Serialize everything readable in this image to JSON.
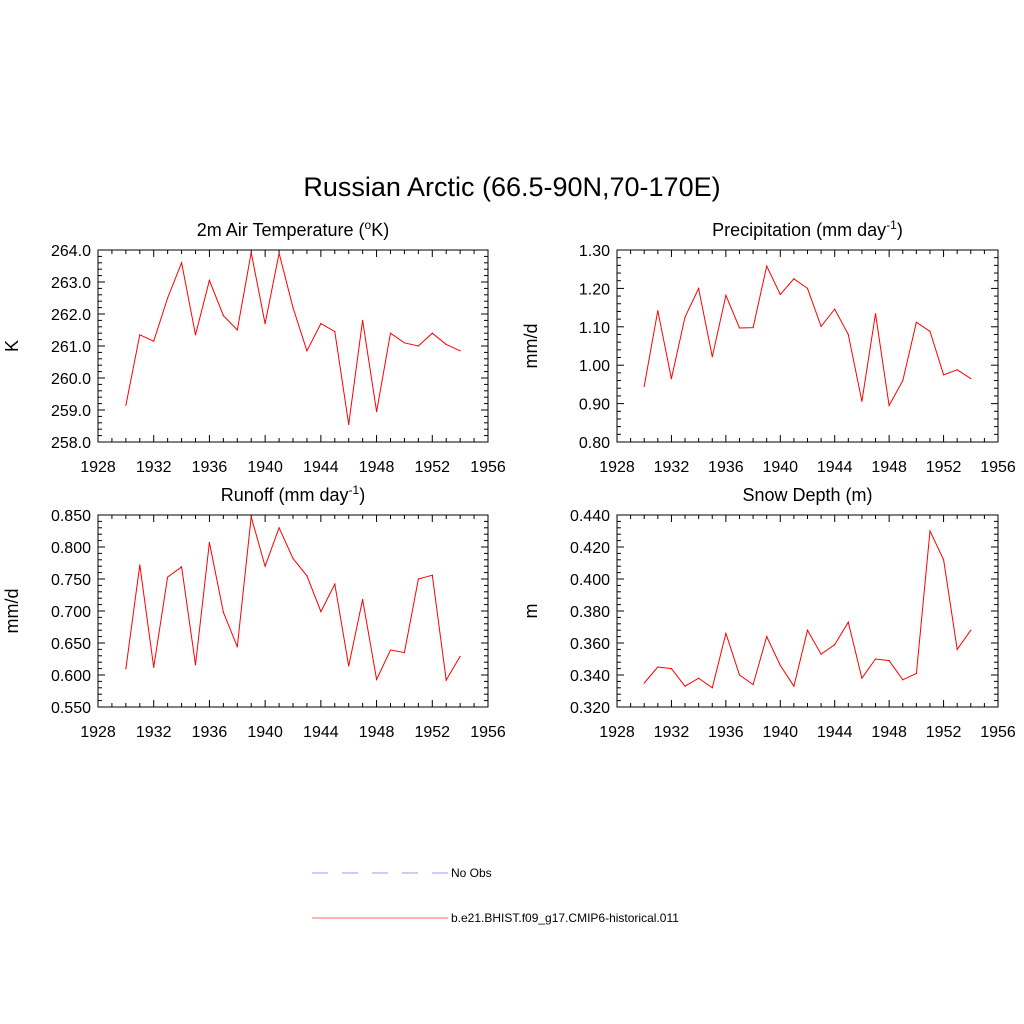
{
  "title": "Russian Arctic (66.5-90N,70-170E)",
  "legend": [
    {
      "label": "No Obs",
      "color": "#9999ff",
      "dash": true
    },
    {
      "label": "b.e21.BHIST.f09_g17.CMIP6-historical.011",
      "color": "#ff6666",
      "dash": false
    }
  ],
  "chart_data": [
    {
      "type": "line",
      "title": "2m Air Temperature (",
      "title_sup": "o",
      "title_after": "K)",
      "xlabel": "",
      "ylabel": "K",
      "xlim": [
        1928,
        1956
      ],
      "ylim": [
        258.0,
        264.0
      ],
      "xticks": [
        1928,
        1932,
        1936,
        1940,
        1944,
        1948,
        1952,
        1956
      ],
      "yticks": [
        "258.0",
        "259.0",
        "260.0",
        "261.0",
        "262.0",
        "263.0",
        "264.0"
      ],
      "series": [
        {
          "x": [
            1930,
            1931,
            1932,
            1933,
            1934,
            1935,
            1936,
            1937,
            1938,
            1939,
            1940,
            1941,
            1942,
            1943,
            1944,
            1945,
            1946,
            1947,
            1948,
            1949,
            1950,
            1951,
            1952,
            1953,
            1954
          ],
          "y": [
            259.15,
            261.35,
            261.15,
            262.5,
            263.6,
            261.35,
            263.05,
            261.95,
            261.5,
            263.92,
            261.7,
            263.9,
            262.2,
            260.85,
            261.7,
            261.45,
            258.55,
            261.8,
            258.95,
            261.4,
            261.1,
            261.0,
            261.4,
            261.05,
            260.85
          ]
        }
      ]
    },
    {
      "type": "line",
      "title": "Precipitation (mm day",
      "title_sup": "-1",
      "title_after": ")",
      "xlabel": "",
      "ylabel": "mm/d",
      "xlim": [
        1928,
        1956
      ],
      "ylim": [
        0.8,
        1.3
      ],
      "xticks": [
        1928,
        1932,
        1936,
        1940,
        1944,
        1948,
        1952,
        1956
      ],
      "yticks": [
        "0.80",
        "0.90",
        "1.00",
        "1.10",
        "1.20",
        "1.30"
      ],
      "series": [
        {
          "x": [
            1930,
            1931,
            1932,
            1933,
            1934,
            1935,
            1936,
            1937,
            1938,
            1939,
            1940,
            1941,
            1942,
            1943,
            1944,
            1945,
            1946,
            1947,
            1948,
            1949,
            1950,
            1951,
            1952,
            1953,
            1954
          ],
          "y": [
            0.945,
            1.142,
            0.965,
            1.125,
            1.2,
            1.022,
            1.182,
            1.097,
            1.098,
            1.258,
            1.184,
            1.225,
            1.2,
            1.101,
            1.146,
            1.08,
            0.906,
            1.134,
            0.895,
            0.96,
            1.112,
            1.088,
            0.975,
            0.988,
            0.965
          ]
        }
      ]
    },
    {
      "type": "line",
      "title": "Runoff (mm day",
      "title_sup": "-1",
      "title_after": ")",
      "xlabel": "",
      "ylabel": "mm/d",
      "xlim": [
        1928,
        1956
      ],
      "ylim": [
        0.55,
        0.85
      ],
      "xticks": [
        1928,
        1932,
        1936,
        1940,
        1944,
        1948,
        1952,
        1956
      ],
      "yticks": [
        "0.550",
        "0.600",
        "0.650",
        "0.700",
        "0.750",
        "0.800",
        "0.850"
      ],
      "series": [
        {
          "x": [
            1930,
            1931,
            1932,
            1933,
            1934,
            1935,
            1936,
            1937,
            1938,
            1939,
            1940,
            1941,
            1942,
            1943,
            1944,
            1945,
            1946,
            1947,
            1948,
            1949,
            1950,
            1951,
            1952,
            1953,
            1954
          ],
          "y": [
            0.61,
            0.772,
            0.612,
            0.753,
            0.769,
            0.616,
            0.807,
            0.698,
            0.644,
            0.847,
            0.77,
            0.83,
            0.782,
            0.755,
            0.699,
            0.742,
            0.614,
            0.718,
            0.593,
            0.639,
            0.635,
            0.75,
            0.756,
            0.592,
            0.629
          ]
        }
      ]
    },
    {
      "type": "line",
      "title": "Snow Depth (m)",
      "title_sup": "",
      "title_after": "",
      "xlabel": "",
      "ylabel": "m",
      "xlim": [
        1928,
        1956
      ],
      "ylim": [
        0.32,
        0.44
      ],
      "xticks": [
        1928,
        1932,
        1936,
        1940,
        1944,
        1948,
        1952,
        1956
      ],
      "yticks": [
        "0.320",
        "0.340",
        "0.360",
        "0.380",
        "0.400",
        "0.420",
        "0.440"
      ],
      "series": [
        {
          "x": [
            1930,
            1931,
            1932,
            1933,
            1934,
            1935,
            1936,
            1937,
            1938,
            1939,
            1940,
            1941,
            1942,
            1943,
            1944,
            1945,
            1946,
            1947,
            1948,
            1949,
            1950,
            1951,
            1952,
            1953,
            1954
          ],
          "y": [
            0.335,
            0.345,
            0.344,
            0.333,
            0.338,
            0.332,
            0.366,
            0.34,
            0.334,
            0.364,
            0.346,
            0.333,
            0.368,
            0.353,
            0.359,
            0.373,
            0.338,
            0.35,
            0.349,
            0.337,
            0.341,
            0.43,
            0.412,
            0.356,
            0.368
          ]
        }
      ]
    }
  ]
}
